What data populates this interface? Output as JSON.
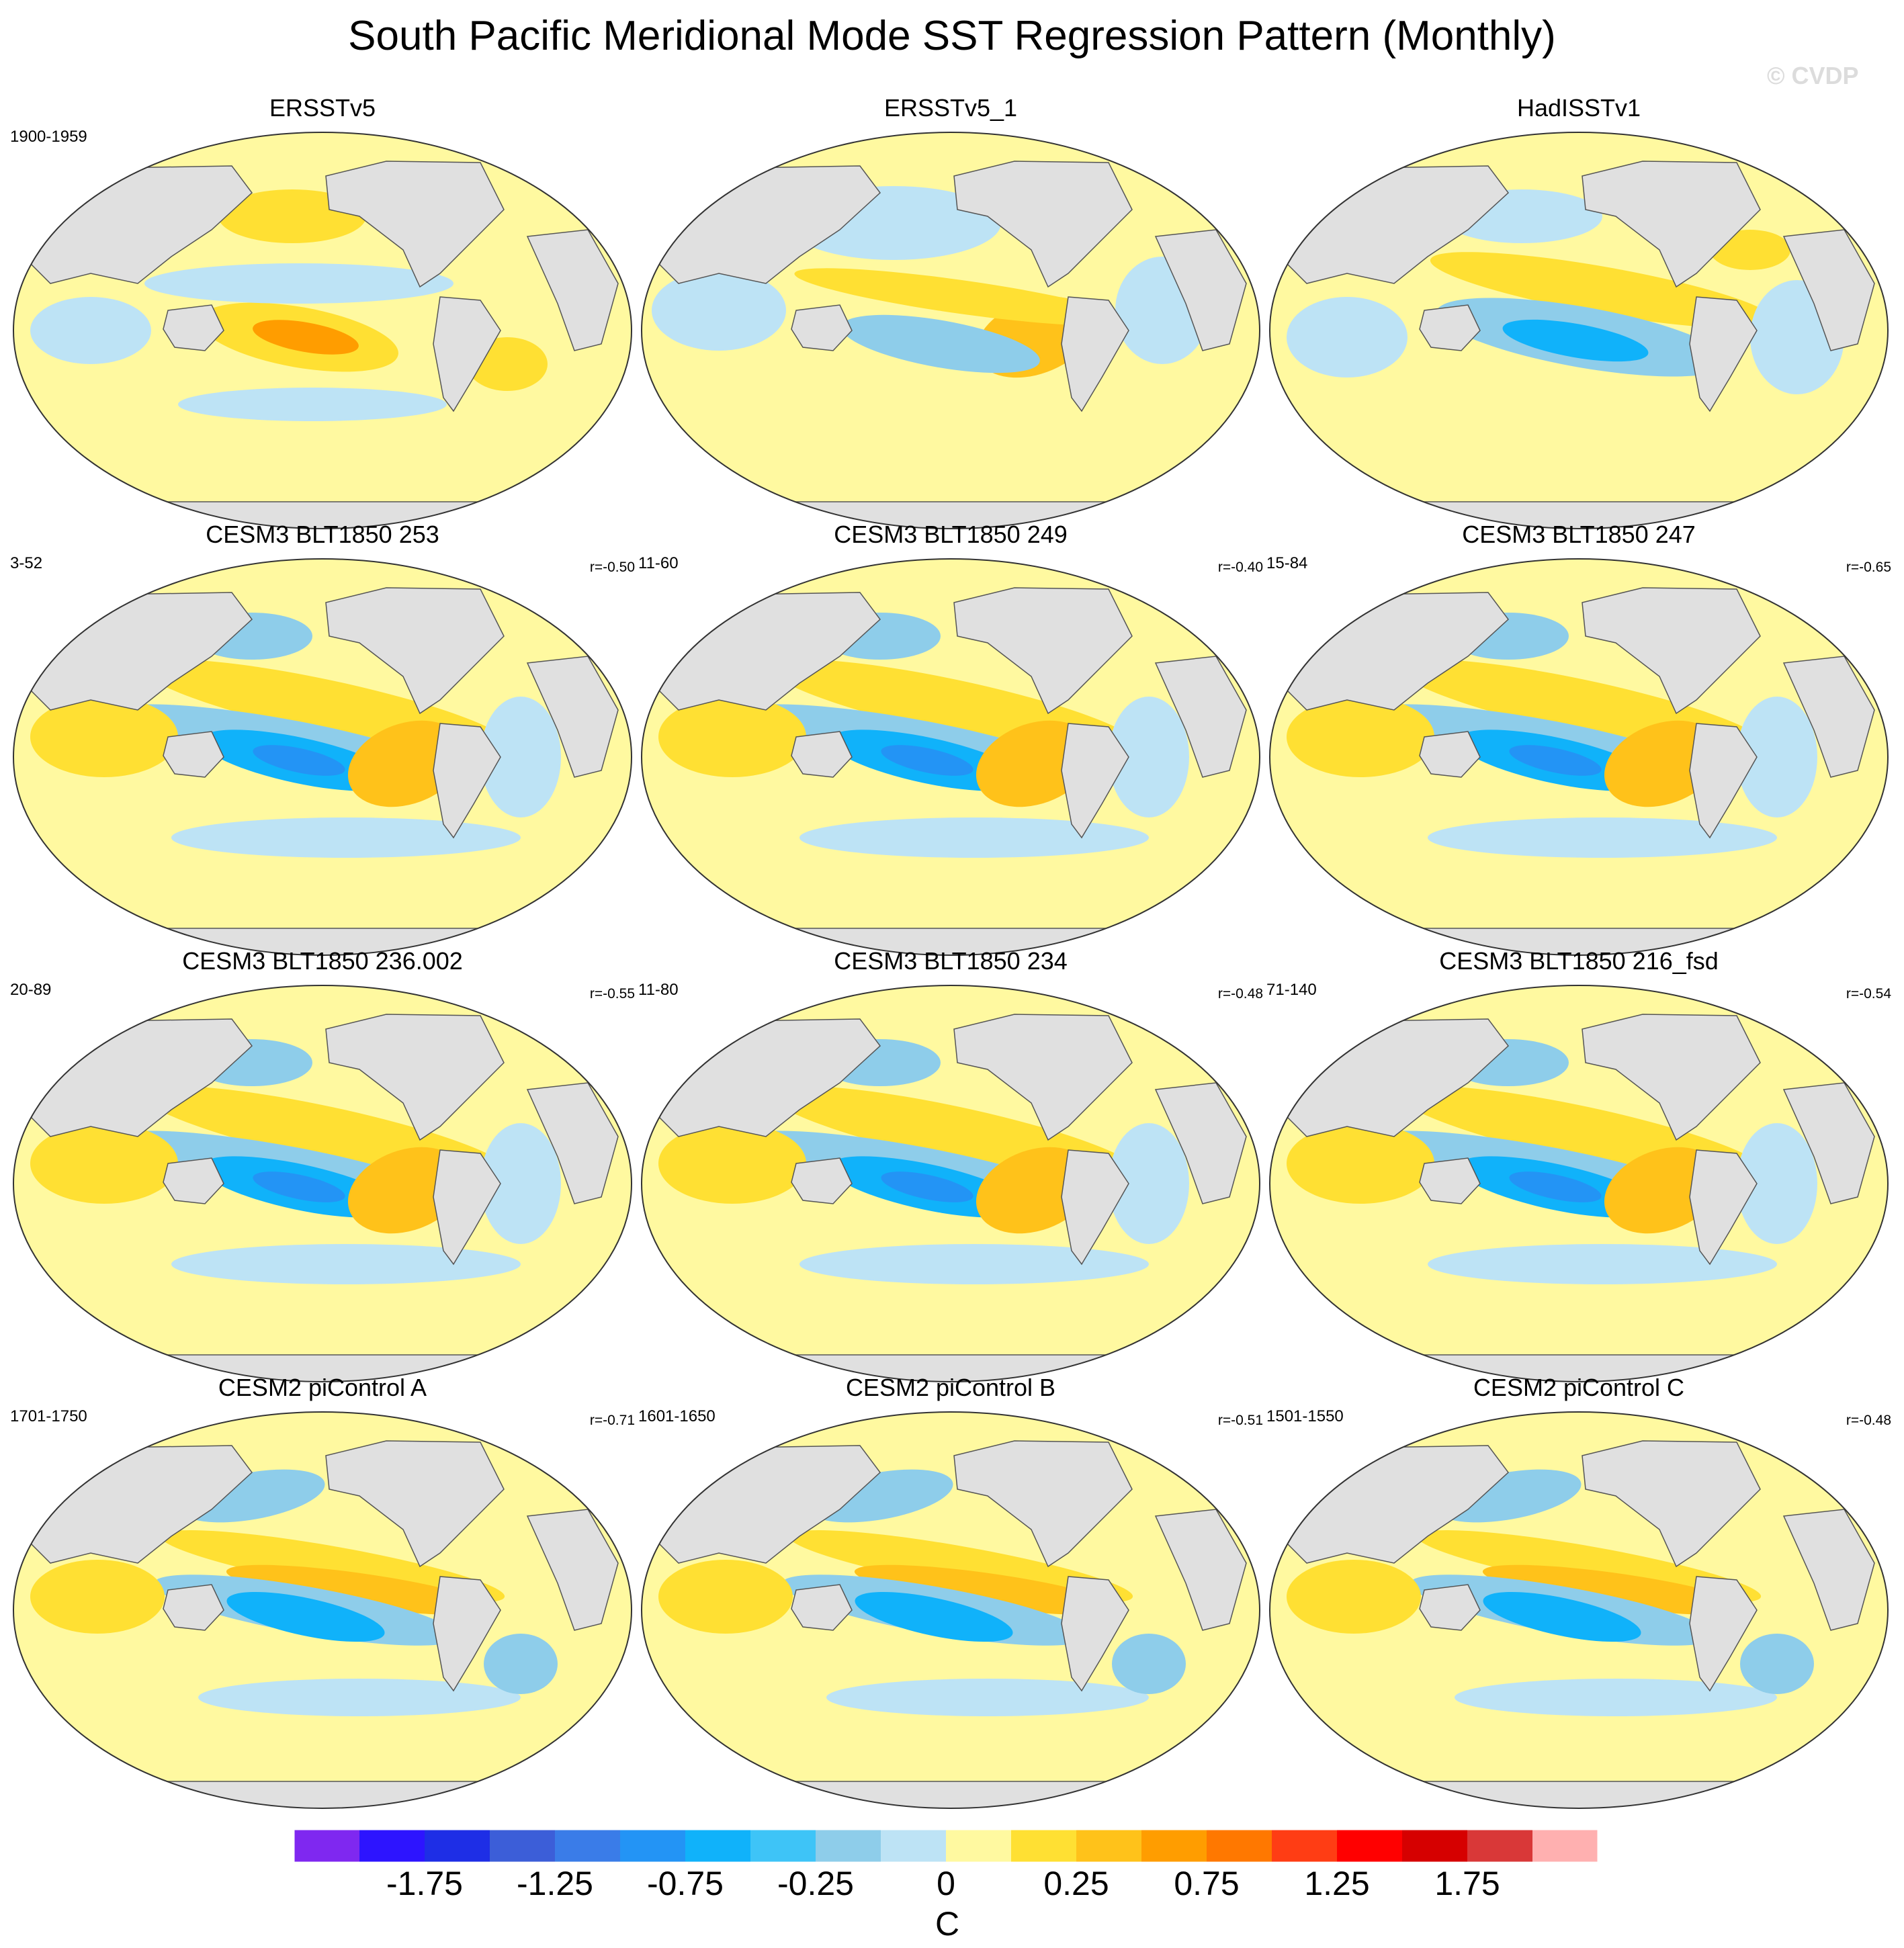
{
  "title": "South Pacific Meridional Mode SST Regression Pattern (Monthly)",
  "watermark": "© CVDP",
  "colorbar": {
    "unit": "C",
    "colors": [
      "#7f28f0",
      "#2d14ff",
      "#1e2ee6",
      "#3c5ed8",
      "#3a7ce8",
      "#2394f5",
      "#10b2fa",
      "#3ec4f7",
      "#8ecdea",
      "#bde3f5",
      "#fff9a0",
      "#ffe033",
      "#ffc21a",
      "#ff9d00",
      "#ff7800",
      "#ff3d14",
      "#ff0000",
      "#d60000",
      "#d93838",
      "#ffb0b0"
    ],
    "tick_labels": [
      "-1.75",
      "-1.25",
      "-0.75",
      "-0.25",
      "0",
      "0.25",
      "0.75",
      "1.25",
      "1.75"
    ]
  },
  "chart_data": [
    {
      "type": "heatmap",
      "title": "ERSSTv5",
      "years": "1900-1959",
      "corr": "",
      "variant": "obs1"
    },
    {
      "type": "heatmap",
      "title": "ERSSTv5_1",
      "years": "",
      "corr": "",
      "variant": "obs2"
    },
    {
      "type": "heatmap",
      "title": "HadISSTv1",
      "years": "",
      "corr": "",
      "variant": "obs3"
    },
    {
      "type": "heatmap",
      "title": "CESM3 BLT1850 253",
      "years": "3-52",
      "corr": "r=-0.50",
      "variant": "model"
    },
    {
      "type": "heatmap",
      "title": "CESM3 BLT1850 249",
      "years": "11-60",
      "corr": "r=-0.40",
      "variant": "model"
    },
    {
      "type": "heatmap",
      "title": "CESM3 BLT1850 247",
      "years": "15-84",
      "corr": "r=-0.65",
      "variant": "model"
    },
    {
      "type": "heatmap",
      "title": "CESM3 BLT1850 236.002",
      "years": "20-89",
      "corr": "r=-0.55",
      "variant": "model"
    },
    {
      "type": "heatmap",
      "title": "CESM3 BLT1850 234",
      "years": "11-80",
      "corr": "r=-0.48",
      "variant": "model"
    },
    {
      "type": "heatmap",
      "title": "CESM3 BLT1850 216_fsd",
      "years": "71-140",
      "corr": "r=-0.54",
      "variant": "model"
    },
    {
      "type": "heatmap",
      "title": "CESM2 piControl A",
      "years": "1701-1750",
      "corr": "r=-0.71",
      "variant": "control"
    },
    {
      "type": "heatmap",
      "title": "CESM2 piControl B",
      "years": "1601-1650",
      "corr": "r=-0.51",
      "variant": "control"
    },
    {
      "type": "heatmap",
      "title": "CESM2 piControl C",
      "years": "1501-1550",
      "corr": "r=-0.48",
      "variant": "control"
    }
  ]
}
